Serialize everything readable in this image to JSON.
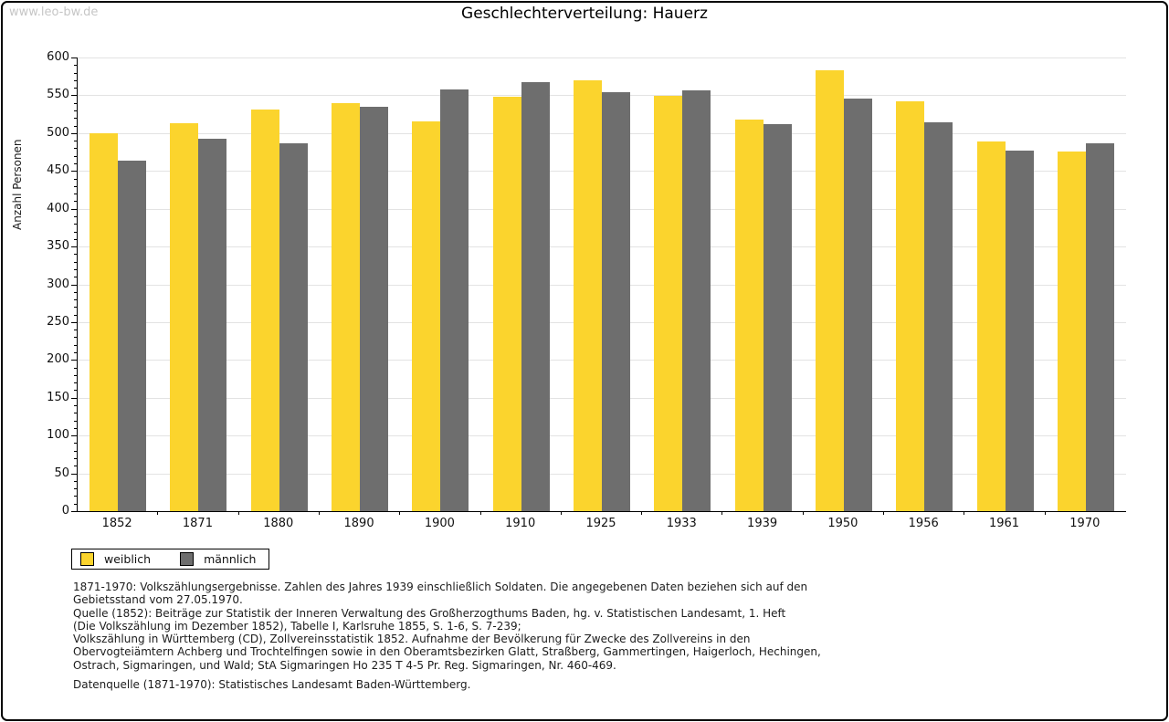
{
  "watermark": "www.leo-bw.de",
  "title": "Geschlechterverteilung: Hauerz",
  "chart_data": {
    "type": "bar",
    "title": "Geschlechterverteilung: Hauerz",
    "ylabel": "Anzahl Personen",
    "xlabel": "",
    "ylim": [
      0,
      600
    ],
    "ytick_major": 50,
    "ytick_minor": 10,
    "grid": true,
    "legend_position": "below-left",
    "categories": [
      "1852",
      "1871",
      "1880",
      "1890",
      "1900",
      "1910",
      "1925",
      "1933",
      "1939",
      "1950",
      "1956",
      "1961",
      "1970"
    ],
    "series": [
      {
        "name": "weiblich",
        "color": "#fbd42d",
        "values": [
          500,
          513,
          531,
          540,
          516,
          548,
          570,
          549,
          518,
          583,
          542,
          489,
          476
        ]
      },
      {
        "name": "männlich",
        "color": "#6e6e6e",
        "values": [
          464,
          492,
          487,
          535,
          558,
          567,
          554,
          556,
          512,
          546,
          514,
          477,
          486
        ]
      }
    ]
  },
  "footnotes": [
    "1871-1970: Volkszählungsergebnisse. Zahlen des Jahres 1939 einschließlich Soldaten. Die angegebenen Daten beziehen sich auf den",
    "Gebietsstand vom 27.05.1970.",
    "Quelle (1852): Beiträge zur Statistik der Inneren Verwaltung des Großherzogthums Baden, hg. v. Statistischen Landesamt, 1. Heft",
    "(Die Volkszählung im Dezember 1852), Tabelle I, Karlsruhe 1855, S. 1-6, S. 7-239;",
    "Volkszählung in Württemberg (CD), Zollvereinsstatistik 1852. Aufnahme der Bevölkerung für Zwecke des Zollvereins in den",
    "Obervogteiämtern Achberg und Trochtelfingen sowie in den Oberamtsbezirken Glatt, Straßberg, Gammertingen, Haigerloch, Hechingen,",
    "Ostrach, Sigmaringen, und Wald; StA Sigmaringen Ho 235 T 4-5 Pr. Reg. Sigmaringen, Nr. 460-469."
  ],
  "datasource": "Datenquelle (1871-1970): Statistisches Landesamt Baden-Württemberg."
}
